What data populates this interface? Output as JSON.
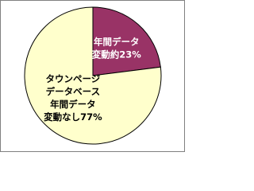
{
  "chart_data": {
    "type": "pie",
    "categories": [
      [
        "年間データ",
        "変動約23%"
      ],
      [
        "タウンページ",
        "データベース",
        "年間データ",
        "変動なし77%"
      ]
    ],
    "values": [
      23,
      77
    ],
    "colors": [
      "#993366",
      "#ffffcc"
    ],
    "label_colors": [
      "#ffffff",
      "#000000"
    ]
  }
}
